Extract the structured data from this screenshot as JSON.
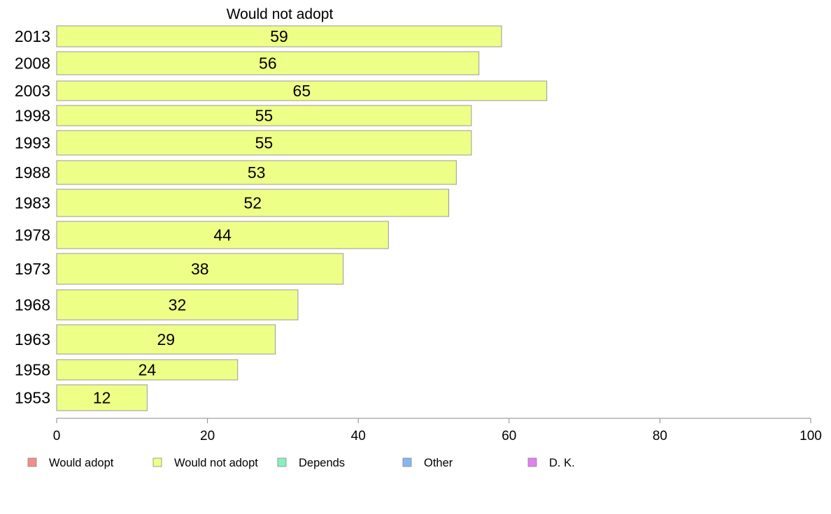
{
  "chart_data": {
    "type": "bar",
    "orientation": "horizontal",
    "title": "Would not adopt",
    "categories": [
      "2013",
      "2008",
      "2003",
      "1998",
      "1993",
      "1988",
      "1983",
      "1978",
      "1973",
      "1968",
      "1963",
      "1958",
      "1953"
    ],
    "series": [
      {
        "name": "Would not adopt",
        "values": [
          59,
          56,
          65,
          55,
          55,
          53,
          52,
          44,
          38,
          32,
          29,
          24,
          12
        ]
      }
    ],
    "xlim": [
      0,
      100
    ],
    "xticks": [
      0,
      20,
      40,
      60,
      80,
      100
    ],
    "grid": false,
    "legend": {
      "placement": "bottom",
      "entries": [
        {
          "label": "Would adopt",
          "color": "#f28e86"
        },
        {
          "label": "Would not adopt",
          "color": "#eeff88"
        },
        {
          "label": "Depends",
          "color": "#86f2bb"
        },
        {
          "label": "Other",
          "color": "#86b6f2"
        },
        {
          "label": "D. K.",
          "color": "#e47ef2"
        }
      ]
    },
    "bar_color": "#eeff88",
    "bar_stroke": "#999999"
  }
}
